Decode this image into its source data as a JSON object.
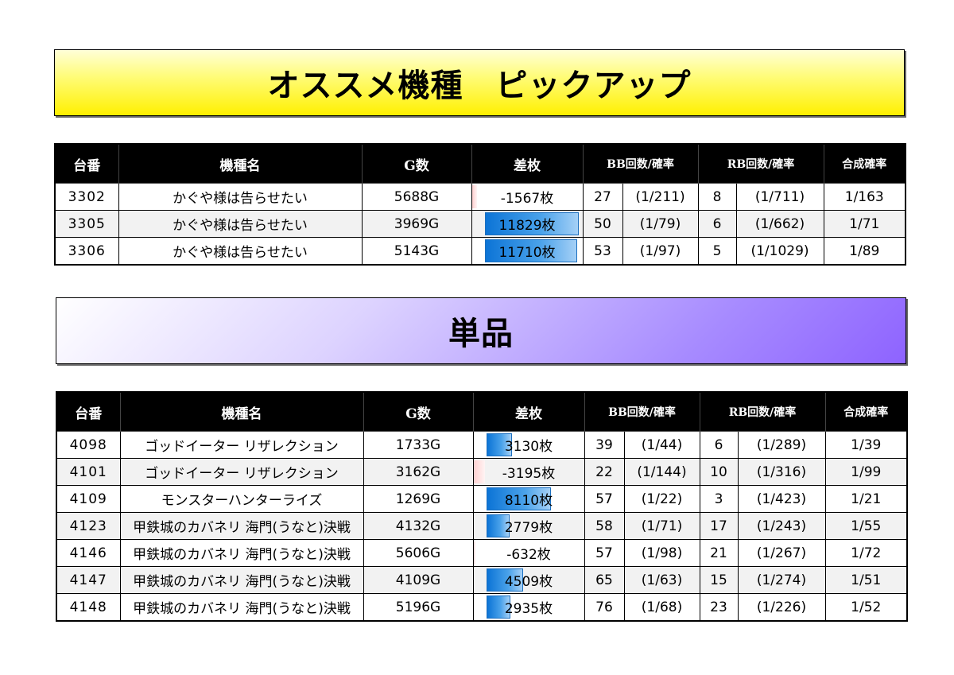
{
  "banner_top": "オススメ機種　ピックアップ",
  "banner_bottom": "単品",
  "headers": {
    "num": "台番",
    "name": "機種名",
    "games": "G数",
    "diff": "差枚",
    "bb": "BB回数/確率",
    "rb": "RB回数/確率",
    "combined": "合成確率"
  },
  "pickup_rows": [
    {
      "num": "3302",
      "name": "かぐや様は告らせたい",
      "games": "5688G",
      "diff": "-1567枚",
      "diff_value": -1567,
      "bb": "27",
      "bb_rate": "(1/211)",
      "rb": "8",
      "rb_rate": "(1/711)",
      "combined": "1/163"
    },
    {
      "num": "3305",
      "name": "かぐや様は告らせたい",
      "games": "3969G",
      "diff": "11829枚",
      "diff_value": 11829,
      "bb": "50",
      "bb_rate": "(1/79)",
      "rb": "6",
      "rb_rate": "(1/662)",
      "combined": "1/71"
    },
    {
      "num": "3306",
      "name": "かぐや様は告らせたい",
      "games": "5143G",
      "diff": "11710枚",
      "diff_value": 11710,
      "bb": "53",
      "bb_rate": "(1/97)",
      "rb": "5",
      "rb_rate": "(1/1029)",
      "combined": "1/89"
    }
  ],
  "single_rows": [
    {
      "num": "4098",
      "name": "ゴッドイーター リザレクション",
      "games": "1733G",
      "diff": "3130枚",
      "diff_value": 3130,
      "bb": "39",
      "bb_rate": "(1/44)",
      "rb": "6",
      "rb_rate": "(1/289)",
      "combined": "1/39"
    },
    {
      "num": "4101",
      "name": "ゴッドイーター リザレクション",
      "games": "3162G",
      "diff": "-3195枚",
      "diff_value": -3195,
      "bb": "22",
      "bb_rate": "(1/144)",
      "rb": "10",
      "rb_rate": "(1/316)",
      "combined": "1/99"
    },
    {
      "num": "4109",
      "name": "モンスターハンターライズ",
      "games": "1269G",
      "diff": "8110枚",
      "diff_value": 8110,
      "bb": "57",
      "bb_rate": "(1/22)",
      "rb": "3",
      "rb_rate": "(1/423)",
      "combined": "1/21"
    },
    {
      "num": "4123",
      "name": "甲鉄城のカバネリ 海門(うなと)決戦",
      "games": "4132G",
      "diff": "2779枚",
      "diff_value": 2779,
      "bb": "58",
      "bb_rate": "(1/71)",
      "rb": "17",
      "rb_rate": "(1/243)",
      "combined": "1/55"
    },
    {
      "num": "4146",
      "name": "甲鉄城のカバネリ 海門(うなと)決戦",
      "games": "5606G",
      "diff": "-632枚",
      "diff_value": -632,
      "bb": "57",
      "bb_rate": "(1/98)",
      "rb": "21",
      "rb_rate": "(1/267)",
      "combined": "1/72"
    },
    {
      "num": "4147",
      "name": "甲鉄城のカバネリ 海門(うなと)決戦",
      "games": "4109G",
      "diff": "4509枚",
      "diff_value": 4509,
      "bb": "65",
      "bb_rate": "(1/63)",
      "rb": "15",
      "rb_rate": "(1/274)",
      "combined": "1/51"
    },
    {
      "num": "4148",
      "name": "甲鉄城のカバネリ 海門(うなと)決戦",
      "games": "5196G",
      "diff": "2935枚",
      "diff_value": 2935,
      "bb": "76",
      "bb_rate": "(1/68)",
      "rb": "23",
      "rb_rate": "(1/226)",
      "combined": "1/52"
    }
  ]
}
